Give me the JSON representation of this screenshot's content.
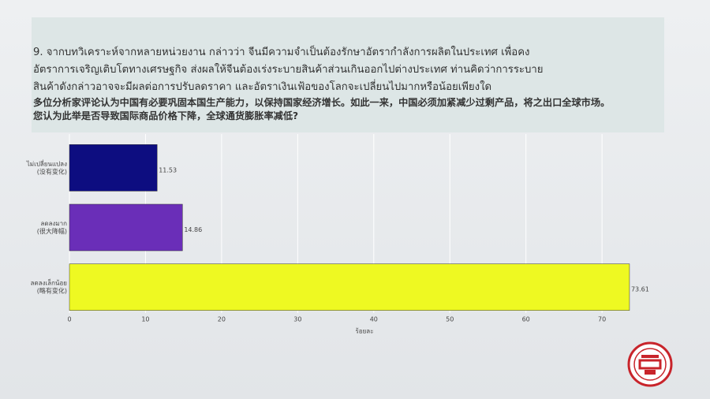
{
  "question": {
    "lines": [
      "9. จากบทวิเคราะห์จากหลายหน่วยงาน กล่าวว่า จีนมีความจำเป็นต้องรักษาอัตรากำลังการผลิตในประเทศ เพื่อคง",
      "อัตราการเจริญเติบโตทางเศรษฐกิจ ส่งผลให้จีนต้องเร่งระบายสินค้าส่วนเกินออกไปต่างประเทศ ท่านคิดว่าการระบาย",
      "สินค้าดังกล่าวอาจจะมีผลต่อการปรับลดราคา และอัตราเงินเฟ้อของโลกจะเปลี่ยนไปมากหรือน้อยเพียงใด"
    ],
    "lines_zh": [
      "多位分析家评论认为中国有必要巩固本国生产能力，以保持国家经济增长。如此一来，中国必须加紧减少过剩产品，将之出口全球市场。",
      "您认为此举是否导致国际商品价格下降，全球通货膨胀率减低?"
    ]
  },
  "chart_data": {
    "type": "hbar",
    "x_label": "ร้อยละ",
    "categories": [
      [
        "ไม่เปลี่ยนแปลง",
        "(没有变化)"
      ],
      [
        "ลดลงมาก",
        "(很大降幅)"
      ],
      [
        "ลดลงเล็กน้อย",
        "(略有变化)"
      ]
    ],
    "values": [
      11.53,
      14.86,
      73.61
    ],
    "colors": [
      "#0d0d80",
      "#6a2eb8",
      "#eef922"
    ],
    "xlim": [
      0,
      76
    ],
    "xticks": [
      0,
      10,
      20,
      30,
      40,
      50,
      60,
      70
    ],
    "grid": true
  }
}
